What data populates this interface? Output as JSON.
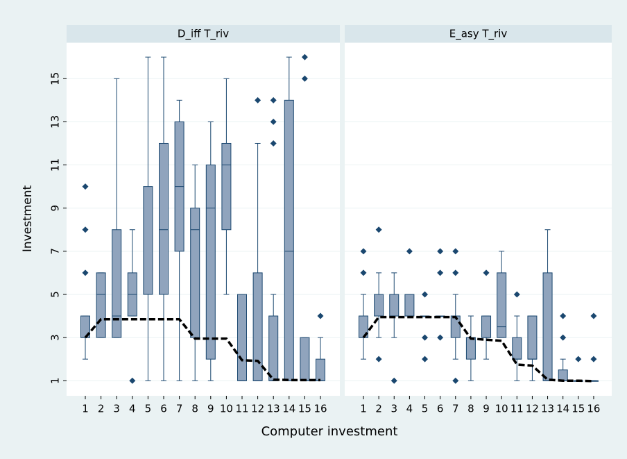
{
  "chart_data": {
    "type": "box",
    "y_label": "Investment",
    "x_label": "Computer investment",
    "ylim": [
      0.3,
      16.65
    ],
    "yticks": [
      1,
      3,
      5,
      7,
      9,
      11,
      13,
      15
    ],
    "box_color": "#90a4bd",
    "edge_color": "#1a476f",
    "line_color": "#000000",
    "grid": true,
    "panels": [
      {
        "title": "D_iff T_riv",
        "categories": [
          "1",
          "2",
          "3",
          "4",
          "5",
          "6",
          "7",
          "8",
          "9",
          "10",
          "11",
          "12",
          "13",
          "14",
          "15",
          "16"
        ],
        "min": [
          2,
          3,
          3,
          4,
          1,
          1,
          1,
          1,
          1,
          5,
          1,
          1,
          1,
          1,
          1,
          1
        ],
        "q1": [
          3,
          3,
          3,
          4,
          5,
          5,
          7,
          3,
          2,
          8,
          1,
          1,
          1,
          1,
          1,
          1
        ],
        "median": [
          3,
          5,
          4,
          5,
          5,
          8,
          10,
          8,
          9,
          11,
          1,
          1,
          1,
          7,
          1,
          1
        ],
        "q3": [
          4,
          6,
          8,
          6,
          10,
          12,
          13,
          9,
          11,
          12,
          5,
          6,
          4,
          14,
          3,
          2
        ],
        "max": [
          4,
          6,
          15,
          8,
          16,
          16,
          14,
          11,
          13,
          15,
          5,
          12,
          5,
          16,
          3,
          3
        ],
        "outliers": [
          [
            6,
            8,
            10
          ],
          [],
          [],
          [
            1
          ],
          [],
          [],
          [],
          [],
          [],
          [],
          [],
          [
            14
          ],
          [
            12,
            13,
            14
          ],
          [],
          [
            15,
            16
          ],
          [
            4
          ]
        ],
        "line": [
          3.0,
          3.85,
          3.85,
          3.85,
          3.85,
          3.85,
          3.85,
          2.95,
          2.95,
          2.95,
          1.95,
          1.92,
          1.05,
          1.03,
          1.03,
          1.03
        ]
      },
      {
        "title": "E_asy T_riv",
        "categories": [
          "1",
          "2",
          "3",
          "4",
          "5",
          "6",
          "7",
          "8",
          "9",
          "10",
          "11",
          "12",
          "13",
          "14",
          "15",
          "16"
        ],
        "min": [
          2,
          3,
          3,
          4,
          4,
          4,
          2,
          1,
          2,
          3,
          1,
          1,
          1,
          1,
          1,
          1
        ],
        "q1": [
          3,
          4,
          4,
          4,
          4,
          4,
          3,
          2,
          3,
          3,
          2,
          2,
          1,
          1,
          1,
          1
        ],
        "median": [
          3,
          4,
          4,
          4,
          4,
          4,
          4,
          3,
          3,
          3.5,
          2,
          2,
          1,
          1,
          1,
          1
        ],
        "q3": [
          4,
          5,
          5,
          5,
          4,
          4,
          4,
          3,
          4,
          6,
          3,
          4,
          6,
          1.5,
          1,
          1
        ],
        "max": [
          5,
          6,
          6,
          5,
          4,
          4,
          5,
          4,
          4,
          7,
          4,
          4,
          8,
          2,
          1,
          1
        ],
        "outliers": [
          [
            6,
            7
          ],
          [
            2,
            8
          ],
          [
            1
          ],
          [
            7
          ],
          [
            2,
            3,
            5
          ],
          [
            3,
            6,
            7
          ],
          [
            1,
            6,
            7
          ],
          [],
          [
            6
          ],
          [],
          [
            5
          ],
          [],
          [],
          [
            3,
            4
          ],
          [
            2
          ],
          [
            2,
            4
          ]
        ],
        "line": [
          3.0,
          3.95,
          3.95,
          3.95,
          3.95,
          3.95,
          3.95,
          2.95,
          2.9,
          2.85,
          1.75,
          1.7,
          1.05,
          1.0,
          1.0,
          0.98
        ]
      }
    ]
  }
}
